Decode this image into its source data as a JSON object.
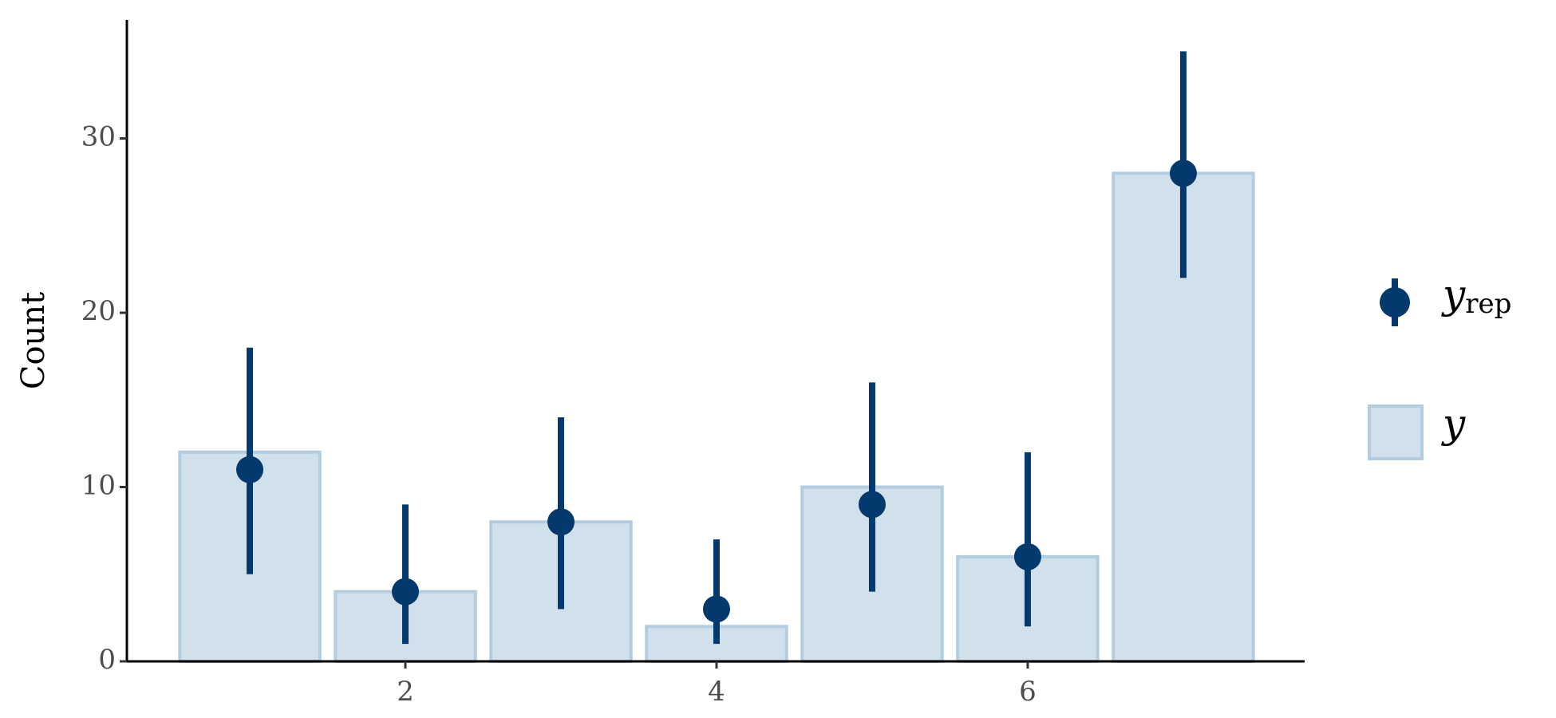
{
  "chart_data": {
    "type": "bar",
    "y_label": "Count",
    "x": [
      1,
      2,
      3,
      4,
      5,
      6,
      7
    ],
    "xlim": [
      0.21,
      7.78
    ],
    "xticks": [
      2,
      4,
      6
    ],
    "ylim": [
      0,
      36.8
    ],
    "yticks": [
      0,
      10,
      20,
      30
    ],
    "series": [
      {
        "name": "y",
        "subscript": "rep",
        "kind": "pointrange",
        "color": "#03396c",
        "values": [
          11,
          4,
          8,
          3,
          9,
          6,
          28
        ],
        "lower": [
          5,
          1,
          3,
          1,
          4,
          2,
          22
        ],
        "upper": [
          18,
          9,
          14,
          7,
          16,
          12,
          35
        ]
      },
      {
        "name": "y",
        "kind": "bar",
        "color": "#d1e1ec",
        "edge_color": "#b3cde0",
        "values": [
          12,
          4,
          8,
          2,
          10,
          6,
          28
        ]
      }
    ]
  }
}
